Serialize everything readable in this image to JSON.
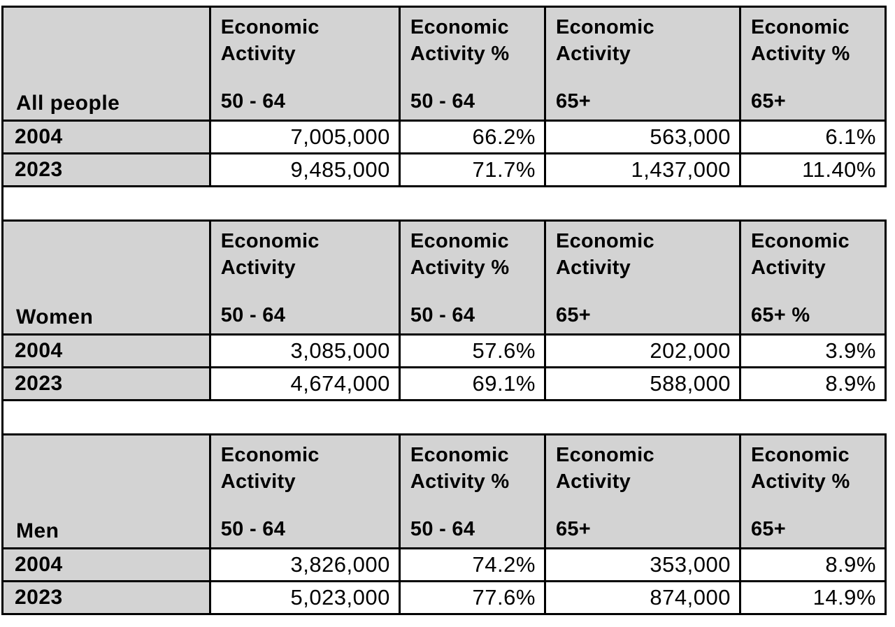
{
  "colors": {
    "header_bg": "#d3d3d3",
    "row_label_bg": "#d3d3d3",
    "value_bg": "#ffffff",
    "border": "#000000",
    "text": "#000000",
    "page_bg": "#ffffff"
  },
  "tables": [
    {
      "group_label": "All people",
      "headers": [
        {
          "title": "Economic Activity",
          "age": "50 - 64"
        },
        {
          "title": "Economic Activity %",
          "age": "50 - 64"
        },
        {
          "title": "Economic Activity",
          "age": "65+"
        },
        {
          "title": "Economic Activity %",
          "age": "65+"
        }
      ],
      "rows": [
        {
          "year": "2004",
          "values": [
            "7,005,000",
            "66.2%",
            "563,000",
            "6.1%"
          ]
        },
        {
          "year": "2023",
          "values": [
            "9,485,000",
            "71.7%",
            "1,437,000",
            "11.40%"
          ]
        }
      ]
    },
    {
      "group_label": "Women",
      "headers": [
        {
          "title": "Economic Activity",
          "age": "50 - 64"
        },
        {
          "title": "Economic Activity %",
          "age": "50 - 64"
        },
        {
          "title": "Economic Activity",
          "age": "65+"
        },
        {
          "title": "Economic Activity",
          "age": "65+ %"
        }
      ],
      "rows": [
        {
          "year": "2004",
          "values": [
            "3,085,000",
            "57.6%",
            "202,000",
            "3.9%"
          ]
        },
        {
          "year": "2023",
          "values": [
            "4,674,000",
            "69.1%",
            "588,000",
            "8.9%"
          ]
        }
      ]
    },
    {
      "group_label": "Men",
      "headers": [
        {
          "title": "Economic Activity",
          "age": "50 - 64"
        },
        {
          "title": "Economic Activity %",
          "age": "50 - 64"
        },
        {
          "title": "Economic Activity",
          "age": "65+"
        },
        {
          "title": "Economic Activity %",
          "age": "65+"
        }
      ],
      "rows": [
        {
          "year": "2004",
          "values": [
            "3,826,000",
            "74.2%",
            "353,000",
            "8.9%"
          ]
        },
        {
          "year": "2023",
          "values": [
            "5,023,000",
            "77.6%",
            "874,000",
            "14.9%"
          ]
        }
      ]
    }
  ],
  "chart_data": [
    {
      "type": "table",
      "group": "All people",
      "columns": [
        "Economic Activity 50 - 64",
        "Economic Activity % 50 - 64",
        "Economic Activity 65+",
        "Economic Activity % 65+"
      ],
      "rows": [
        {
          "year": 2004,
          "economic_activity_50_64": 7005000,
          "economic_activity_pct_50_64": 66.2,
          "economic_activity_65_plus": 563000,
          "economic_activity_pct_65_plus": 6.1
        },
        {
          "year": 2023,
          "economic_activity_50_64": 9485000,
          "economic_activity_pct_50_64": 71.7,
          "economic_activity_65_plus": 1437000,
          "economic_activity_pct_65_plus": 11.4
        }
      ]
    },
    {
      "type": "table",
      "group": "Women",
      "columns": [
        "Economic Activity 50 - 64",
        "Economic Activity % 50 - 64",
        "Economic Activity 65+",
        "Economic Activity 65+ %"
      ],
      "rows": [
        {
          "year": 2004,
          "economic_activity_50_64": 3085000,
          "economic_activity_pct_50_64": 57.6,
          "economic_activity_65_plus": 202000,
          "economic_activity_pct_65_plus": 3.9
        },
        {
          "year": 2023,
          "economic_activity_50_64": 4674000,
          "economic_activity_pct_50_64": 69.1,
          "economic_activity_65_plus": 588000,
          "economic_activity_pct_65_plus": 8.9
        }
      ]
    },
    {
      "type": "table",
      "group": "Men",
      "columns": [
        "Economic Activity 50 - 64",
        "Economic Activity % 50 - 64",
        "Economic Activity 65+",
        "Economic Activity % 65+"
      ],
      "rows": [
        {
          "year": 2004,
          "economic_activity_50_64": 3826000,
          "economic_activity_pct_50_64": 74.2,
          "economic_activity_65_plus": 353000,
          "economic_activity_pct_65_plus": 8.9
        },
        {
          "year": 2023,
          "economic_activity_50_64": 5023000,
          "economic_activity_pct_50_64": 77.6,
          "economic_activity_65_plus": 874000,
          "economic_activity_pct_65_plus": 14.9
        }
      ]
    }
  ]
}
